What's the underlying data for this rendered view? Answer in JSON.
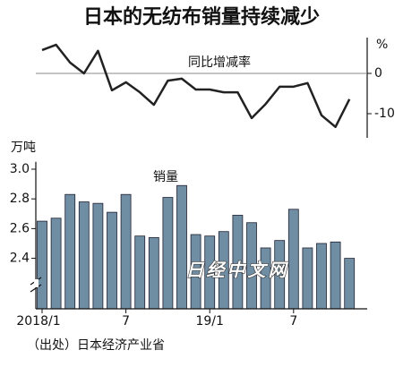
{
  "title": "日本的无纺布销量持续减少",
  "source": "（出处）日本经济产业省",
  "watermark": "日经中文网",
  "chart_data": [
    {
      "type": "line",
      "label": "同比增减率",
      "unit": "%",
      "color": "#222222",
      "values": [
        5.8,
        7.1,
        2.7,
        0,
        5.6,
        -4.2,
        -2.2,
        -4.7,
        -7.8,
        -1.8,
        -1.3,
        -4,
        -4,
        -4.7,
        -4.7,
        -11.1,
        -7.6,
        -3.3,
        -3.3,
        -2.4,
        -10.4,
        -13.3,
        -6.4
      ],
      "ylim": [
        -16,
        10
      ],
      "yticks": [
        0,
        -10
      ]
    },
    {
      "type": "bar",
      "label": "销量",
      "axis_label": "万吨",
      "color": "#6f8da3",
      "categories": [
        "2018/1",
        null,
        null,
        null,
        null,
        null,
        "7",
        null,
        null,
        null,
        null,
        null,
        "19/1",
        null,
        null,
        null,
        null,
        null,
        "7",
        null,
        null,
        null,
        null
      ],
      "values": [
        2.65,
        2.67,
        2.83,
        2.78,
        2.77,
        2.71,
        2.83,
        2.55,
        2.54,
        2.81,
        2.89,
        2.56,
        2.55,
        2.58,
        2.69,
        2.64,
        2.47,
        2.52,
        2.73,
        2.47,
        2.5,
        2.51,
        2.4
      ],
      "ylim": [
        2.06,
        3.05
      ],
      "yticks": [
        2.4,
        2.6,
        2.8,
        {
          "value": 3,
          "label": "3.0"
        }
      ]
    }
  ]
}
